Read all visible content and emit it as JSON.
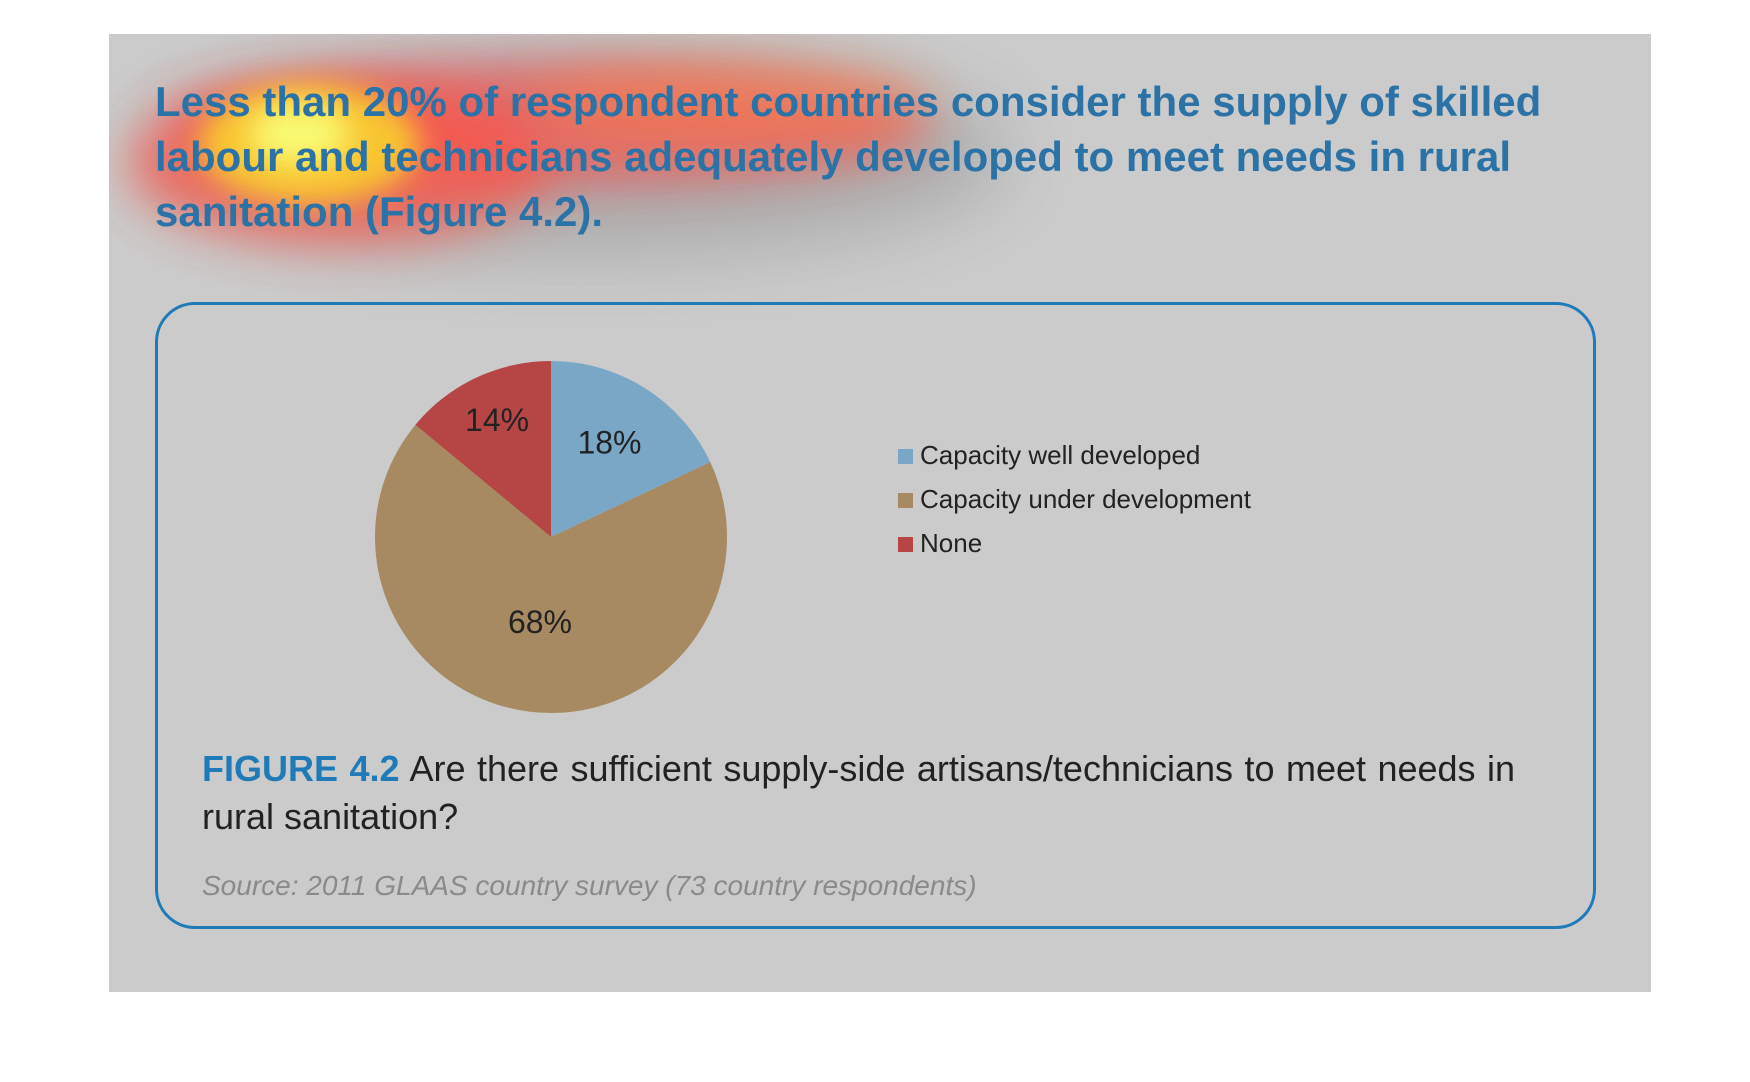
{
  "headline": "Less than 20% of respondent countries consider the supply of skilled labour and technicians adequately developed to meet needs in rural sanitation (Figure 4.2).",
  "figure": {
    "label": "FIGURE 4.2",
    "caption": "Are there sufficient supply-side artisans/technicians to meet needs in rural sanitation?",
    "source": "Source: 2011 GLAAS country survey (73 country respondents)"
  },
  "chart_data": {
    "type": "pie",
    "title": "",
    "legend_position": "right",
    "categories": [
      "Capacity well developed",
      "Capacity under development",
      "None"
    ],
    "values": [
      18,
      68,
      14
    ],
    "labels": [
      "18%",
      "68%",
      "14%"
    ],
    "colors": [
      "#7ba7c7",
      "#a88a62",
      "#b64645"
    ]
  }
}
